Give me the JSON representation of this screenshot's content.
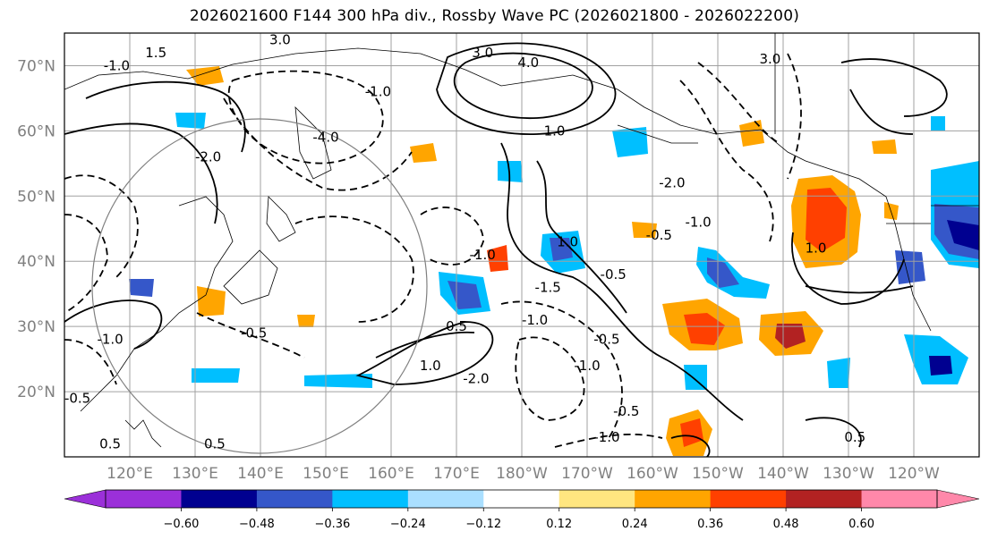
{
  "title": "2026021600 F144 300 hPa div., Rossby Wave PC (2026021800 - 2026022200)",
  "colors": {
    "grid": "#a0a0a0",
    "coast": "#000000",
    "label": "#808080",
    "contour": "#000000",
    "circle": "#808080"
  },
  "map": {
    "lat_range": [
      10,
      75
    ],
    "lon_range": [
      110,
      250
    ],
    "lat_ticks": [
      {
        "value": 20,
        "label": "20°N"
      },
      {
        "value": 30,
        "label": "30°N"
      },
      {
        "value": 40,
        "label": "40°N"
      },
      {
        "value": 50,
        "label": "50°N"
      },
      {
        "value": 60,
        "label": "60°N"
      },
      {
        "value": 70,
        "label": "70°N"
      }
    ],
    "lon_ticks": [
      {
        "value": 120,
        "label": "120°E"
      },
      {
        "value": 130,
        "label": "130°E"
      },
      {
        "value": 140,
        "label": "140°E"
      },
      {
        "value": 150,
        "label": "150°E"
      },
      {
        "value": 160,
        "label": "160°E"
      },
      {
        "value": 170,
        "label": "170°E"
      },
      {
        "value": 180,
        "label": "180°W"
      },
      {
        "value": 190,
        "label": "170°W"
      },
      {
        "value": 200,
        "label": "160°W"
      },
      {
        "value": 210,
        "label": "150°W"
      },
      {
        "value": 220,
        "label": "140°W"
      },
      {
        "value": 230,
        "label": "130°W"
      },
      {
        "value": 240,
        "label": "120°W"
      }
    ],
    "contour_labels": [
      {
        "text": "1.5",
        "lon": 124,
        "lat": 72
      },
      {
        "text": "3.0",
        "lon": 143,
        "lat": 74
      },
      {
        "text": "3.0",
        "lon": 174,
        "lat": 72
      },
      {
        "text": "4.0",
        "lon": 181,
        "lat": 70.5
      },
      {
        "text": "-1.0",
        "lon": 158,
        "lat": 66
      },
      {
        "text": "-1.0",
        "lon": 118,
        "lat": 70
      },
      {
        "text": "3.0",
        "lon": 218,
        "lat": 71
      },
      {
        "text": "1.0",
        "lon": 185,
        "lat": 60
      },
      {
        "text": "-4.0",
        "lon": 150,
        "lat": 59
      },
      {
        "text": "-2.0",
        "lon": 203,
        "lat": 52
      },
      {
        "text": "-1.0",
        "lon": 207,
        "lat": 46
      },
      {
        "text": "-1.0",
        "lon": 174,
        "lat": 41
      },
      {
        "text": "1.0",
        "lon": 187,
        "lat": 43
      },
      {
        "text": "-1.5",
        "lon": 184,
        "lat": 36
      },
      {
        "text": "-0.5",
        "lon": 194,
        "lat": 38
      },
      {
        "text": "-0.5",
        "lon": 201,
        "lat": 44
      },
      {
        "text": "-1.0",
        "lon": 182,
        "lat": 31
      },
      {
        "text": "-0.5",
        "lon": 193,
        "lat": 28
      },
      {
        "text": "-1.0",
        "lon": 190,
        "lat": 24
      },
      {
        "text": "0.5",
        "lon": 170,
        "lat": 30
      },
      {
        "text": "1.0",
        "lon": 166,
        "lat": 24
      },
      {
        "text": "-2.0",
        "lon": 173,
        "lat": 22
      },
      {
        "text": "-0.5",
        "lon": 139,
        "lat": 29
      },
      {
        "text": "-0.5",
        "lon": 196,
        "lat": 17
      },
      {
        "text": "-1.0",
        "lon": 193,
        "lat": 13
      },
      {
        "text": "0.5",
        "lon": 231,
        "lat": 13
      },
      {
        "text": "0.5",
        "lon": 133,
        "lat": 12
      },
      {
        "text": "0.5",
        "lon": 117,
        "lat": 12
      },
      {
        "text": "-0.5",
        "lon": 112,
        "lat": 19
      },
      {
        "text": "-1.0",
        "lon": 117,
        "lat": 28
      },
      {
        "text": "-2.0",
        "lon": 132,
        "lat": 56
      },
      {
        "text": "1.0",
        "lon": 225,
        "lat": 42
      }
    ]
  },
  "colorbar": {
    "levels": [
      -0.72,
      -0.6,
      -0.48,
      -0.36,
      -0.24,
      -0.12,
      0.12,
      0.24,
      0.36,
      0.48,
      0.6,
      0.72
    ],
    "tick_labels": [
      "−0.60",
      "−0.48",
      "−0.36",
      "−0.24",
      "−0.12",
      "0.12",
      "0.24",
      "0.36",
      "0.48",
      "0.60"
    ],
    "colors": [
      "#9b30d9",
      "#000090",
      "#3557c9",
      "#00bfff",
      "#aadfff",
      "#ffffff",
      "#ffe680",
      "#ffa500",
      "#ff4000",
      "#b22222",
      "#ff88aa"
    ]
  }
}
